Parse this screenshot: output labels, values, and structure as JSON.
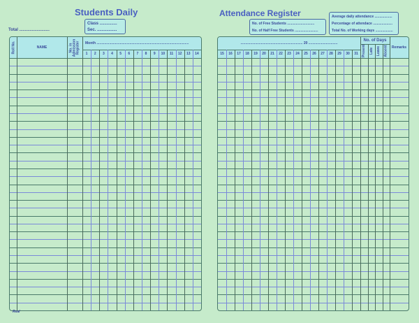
{
  "left": {
    "title": "Students Daily",
    "class_label": "Class ...............",
    "sec_label": "Sec. .................",
    "total_label": "Total ..........................",
    "col_roll": "Roll No.",
    "col_name": "NAME",
    "col_adm": "No. in Admission Register",
    "month_label": "Month ...............................................................................................",
    "days": [
      "1",
      "2",
      "3",
      "4",
      "5",
      "6",
      "7",
      "8",
      "9",
      "10",
      "11",
      "12",
      "13",
      "14"
    ],
    "footer": "Real"
  },
  "right": {
    "title": "Attendance Register",
    "free_students": "No. of Free Students ............................",
    "half_free": "No. of Half Free Students ........................",
    "avg_attendance": "Average daily attendance ..................",
    "pct_attendance": "Percentage of attendace ....................",
    "working_days": "Total No. of Working days ..................",
    "year_label": "................................................................ 20 ..............................",
    "days": [
      "15",
      "16",
      "17",
      "18",
      "19",
      "20",
      "21",
      "22",
      "23",
      "24",
      "25",
      "26",
      "27",
      "28",
      "29",
      "30",
      "31"
    ],
    "no_of_days": "No. of Days",
    "summary_cols": [
      "Present",
      "Late",
      "Leave",
      "Absent"
    ],
    "remarks": "Remarks"
  },
  "row_count": 32,
  "colors": {
    "background": "#c6ebcb",
    "header": "#b1e8ea",
    "title": "#4a5fc1"
  }
}
